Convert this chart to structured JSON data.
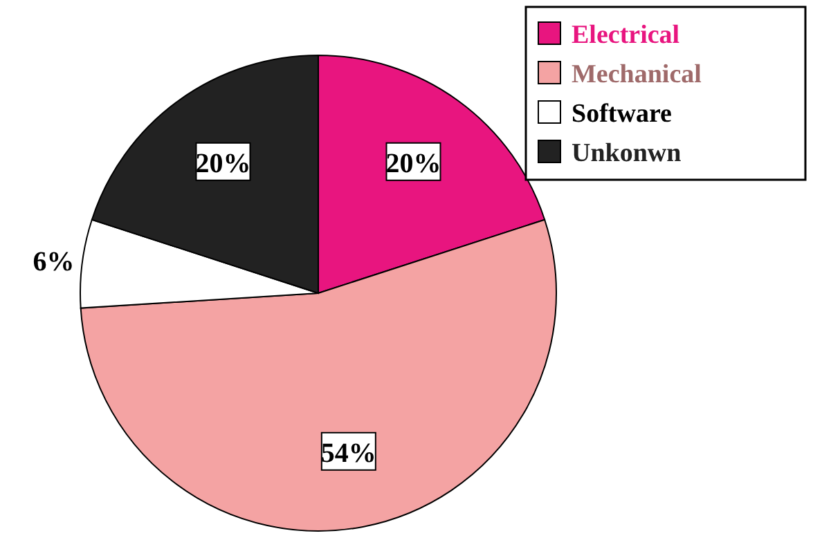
{
  "chart_data": {
    "type": "pie",
    "categories": [
      "Electrical",
      "Mechanical",
      "Software",
      "Unkonwn"
    ],
    "values": [
      20,
      54,
      6,
      20
    ],
    "colors": [
      "#e8157f",
      "#f4a3a3",
      "#ffffff",
      "#222222"
    ],
    "value_labels": [
      "20%",
      "54%",
      "6%",
      "20%"
    ],
    "legend": "top right"
  }
}
